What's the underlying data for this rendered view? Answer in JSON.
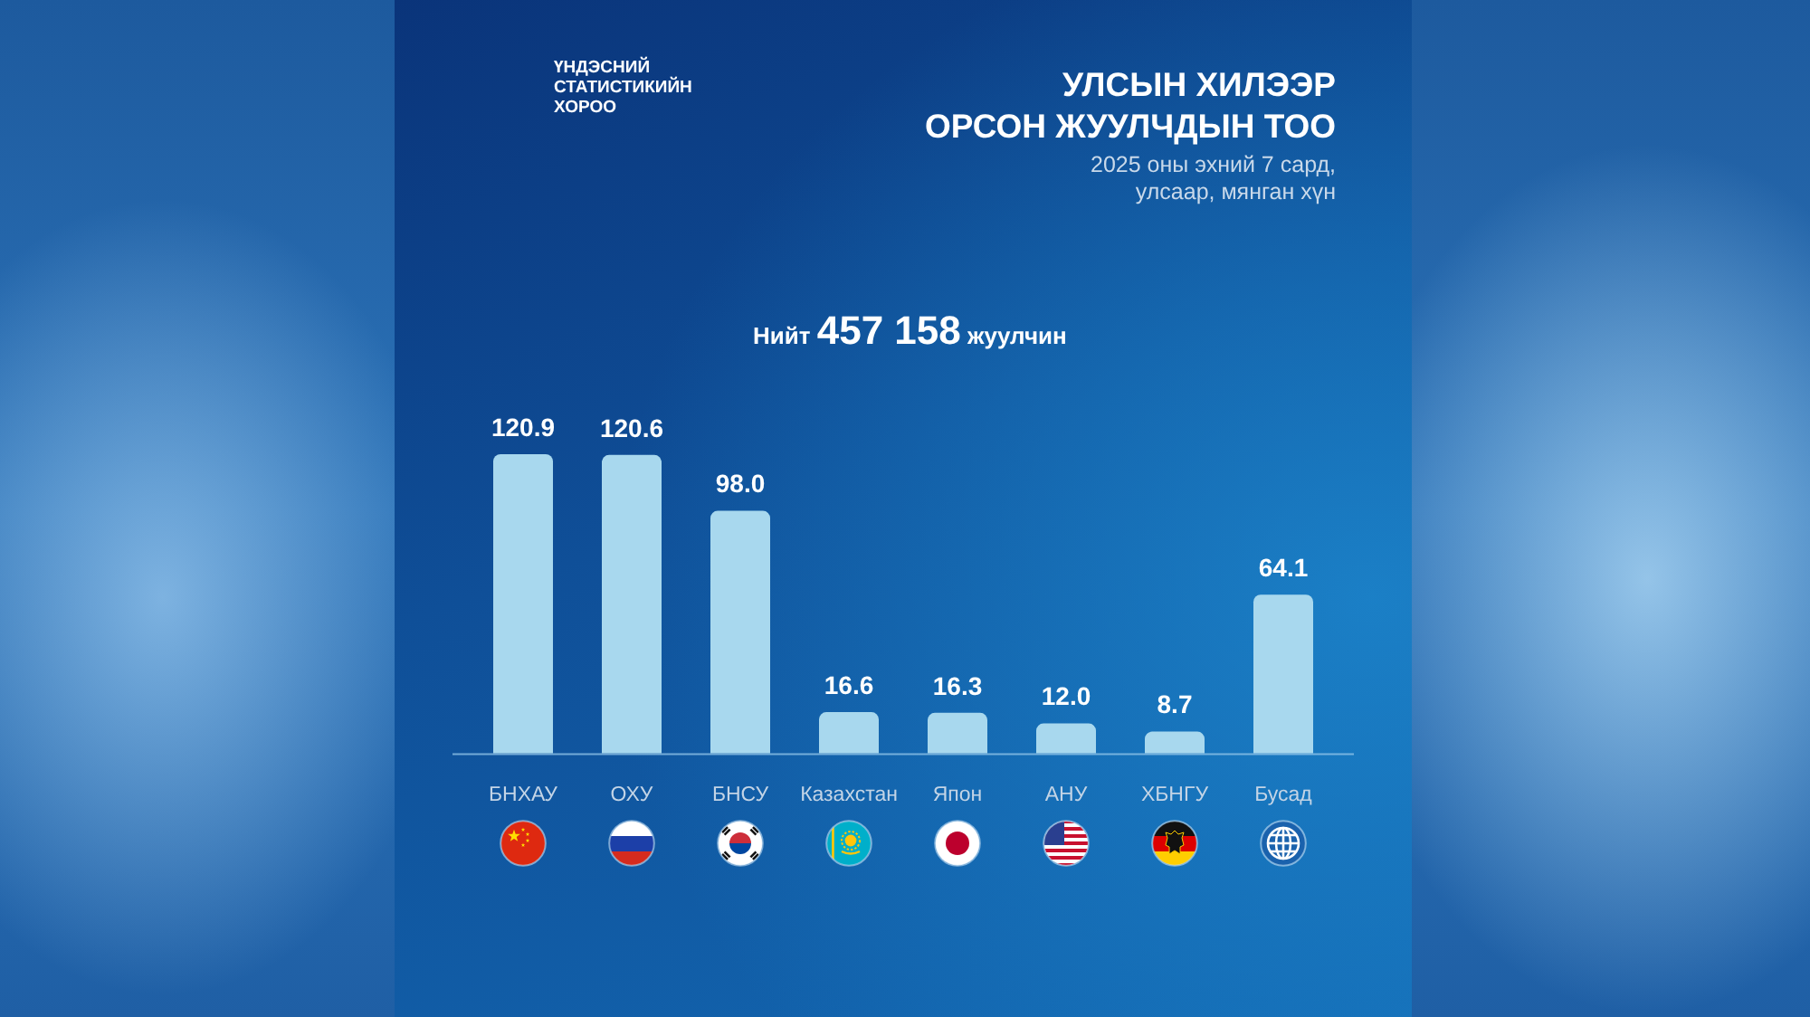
{
  "chart_data": {
    "type": "bar",
    "title": "УЛСЫН ХИЛЭЭР\nОРСОН ЖУУЛЧДЫН ТОО",
    "subtitle": "2025 оны эхний 7 сард,\nулсаар, мянган хүн",
    "annotations": [
      "ҮНДЭСНИЙ\nСТАТИСТИКИЙН\nХОРОО",
      "Нийт 457 158 жуулчин"
    ],
    "categories": [
      "БНХАУ",
      "ОХУ",
      "БНСУ",
      "Казахстан",
      "Япон",
      "АНУ",
      "ХБНГУ",
      "Бусад"
    ],
    "values": [
      120.9,
      120.6,
      98.0,
      16.6,
      16.3,
      12.0,
      8.7,
      64.1
    ],
    "value_labels": [
      "120.9",
      "120.6",
      "98.0",
      "16.6",
      "16.3",
      "12.0",
      "8.7",
      "64.1"
    ],
    "color": "#a8d8ee"
  }
}
